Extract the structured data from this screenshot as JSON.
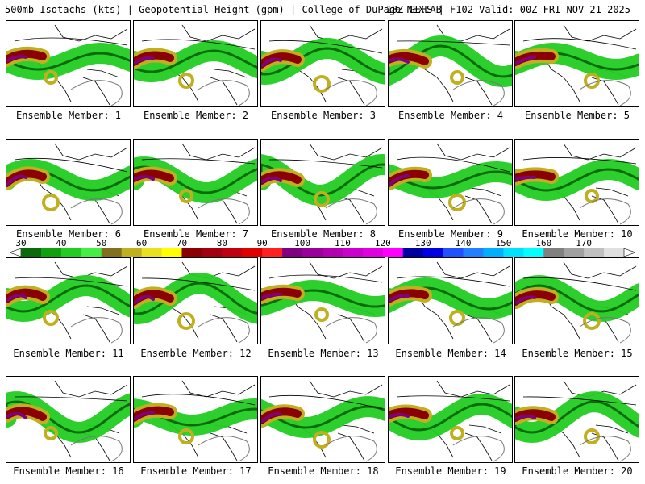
{
  "header": {
    "left": "500mb Isotachs (kts) | Geopotential Height (gpm) | College of DuPage NEXLAB",
    "right": "18Z GEFS | F102 Valid: 00Z FRI NOV 21 2025"
  },
  "colorbar": {
    "labels": [
      "30",
      "40",
      "50",
      "60",
      "70",
      "80",
      "90",
      "100",
      "110",
      "120",
      "130",
      "140",
      "150",
      "160",
      "170"
    ],
    "colors": [
      "#0b6b0b",
      "#10a010",
      "#22cc22",
      "#44ee44",
      "#807020",
      "#c0b020",
      "#e8e020",
      "#ffff00",
      "#8b0000",
      "#a00010",
      "#c00010",
      "#e00000",
      "#ff2020",
      "#800080",
      "#9a009a",
      "#b000b0",
      "#cc00cc",
      "#e000e0",
      "#ff00ff",
      "#0000a0",
      "#0000e0",
      "#2050ff",
      "#2080ff",
      "#00b0ff",
      "#00e0ff",
      "#00ffff",
      "#808080",
      "#a0a0a0",
      "#c0c0c0",
      "#e0e0e0"
    ]
  },
  "members": [
    {
      "label": "Ensemble Member: 1"
    },
    {
      "label": "Ensemble Member: 2"
    },
    {
      "label": "Ensemble Member: 3"
    },
    {
      "label": "Ensemble Member: 4"
    },
    {
      "label": "Ensemble Member: 5"
    },
    {
      "label": "Ensemble Member: 6"
    },
    {
      "label": "Ensemble Member: 7"
    },
    {
      "label": "Ensemble Member: 8"
    },
    {
      "label": "Ensemble Member: 9"
    },
    {
      "label": "Ensemble Member: 10"
    },
    {
      "label": "Ensemble Member: 11"
    },
    {
      "label": "Ensemble Member: 12"
    },
    {
      "label": "Ensemble Member: 13"
    },
    {
      "label": "Ensemble Member: 14"
    },
    {
      "label": "Ensemble Member: 15"
    },
    {
      "label": "Ensemble Member: 16"
    },
    {
      "label": "Ensemble Member: 17"
    },
    {
      "label": "Ensemble Member: 18"
    },
    {
      "label": "Ensemble Member: 19"
    },
    {
      "label": "Ensemble Member: 20"
    }
  ]
}
